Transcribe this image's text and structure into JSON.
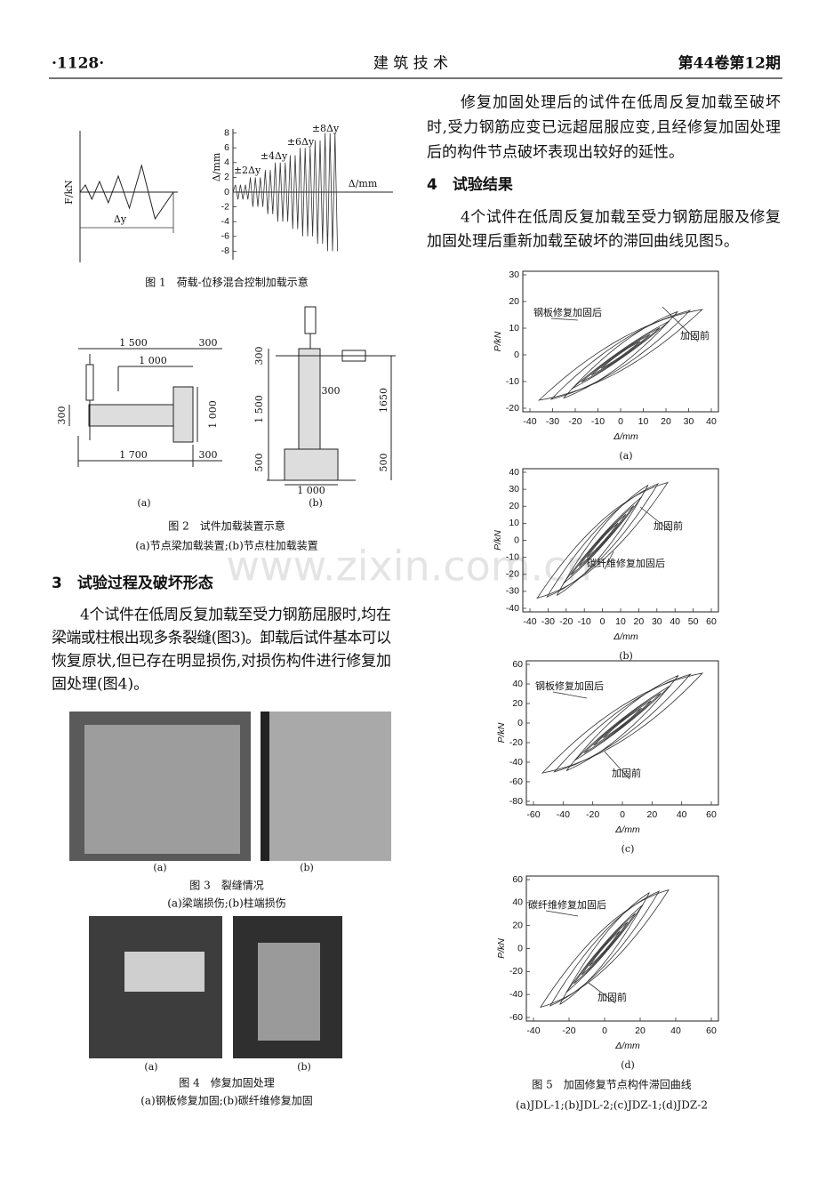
{
  "header": {
    "page": "·1128·",
    "journal": "建 筑 技 术",
    "issue": "第44卷第12期"
  },
  "figure1": {
    "y_label_left": "F/kN",
    "delta_y": "Δy",
    "y_label_right": "Δ/mm",
    "x_label": "Δ/mm",
    "yticks": [
      8,
      6,
      4,
      2,
      0,
      -2,
      -4,
      -6,
      -8
    ],
    "steps": [
      "±2Δy",
      "±4Δy",
      "±6Δy",
      "±8Δy"
    ],
    "caption": "图 1　荷载-位移混合控制加载示意"
  },
  "figure2": {
    "a_dims": [
      "1 500",
      "300",
      "1 000",
      "300",
      "1 000",
      "1 700",
      "300"
    ],
    "b_dims": [
      "300",
      "300",
      "1 500",
      "1650",
      "500",
      "500",
      "1 000"
    ],
    "label_a": "(a)",
    "label_b": "(b)",
    "caption": "图 2　试件加载装置示意",
    "subcaption": "(a)节点梁加载装置;(b)节点柱加载装置"
  },
  "section3": {
    "heading": "3　试验过程及破坏形态",
    "lines": [
      "4个试件在低周反复加载至受力钢筋屈服时,均在",
      "梁端或柱根出现多条裂缝(图3)。卸载后试件基本可以",
      "恢复原状,但已存在明显损伤,对损伤构件进行修复加",
      "固处理(图4)。"
    ]
  },
  "figure3": {
    "label_a": "(a)",
    "label_b": "(b)",
    "caption": "图 3　裂缝情况",
    "subcaption": "(a)梁端损伤;(b)柱端损伤"
  },
  "figure4": {
    "label_a": "(a)",
    "label_b": "(b)",
    "caption": "图 4　修复加固处理",
    "subcaption": "(a)钢板修复加固;(b)碳纤维修复加固"
  },
  "right_paragraph": {
    "lines": [
      "修复加固处理后的试件在低周反复加载至破坏",
      "时,受力钢筋应变已远超屈服应变,且经修复加固处理",
      "后的构件节点破坏表现出较好的延性。"
    ]
  },
  "section4": {
    "heading": "4　试验结果",
    "lines": [
      "4个试件在低周反复加载至受力钢筋屈服及修复",
      "加固处理后重新加载至破坏的滞回曲线见图5。"
    ]
  },
  "figure5": {
    "plots": [
      {
        "y_label": "P/kN",
        "x_label": "Δ/mm",
        "xticks": [
          -40,
          -30,
          -20,
          -10,
          0,
          10,
          20,
          30,
          40
        ],
        "yticks": [
          30,
          20,
          10,
          0,
          -10,
          -20
        ],
        "annotations": [
          "钢板修复加固后",
          "加固前"
        ],
        "label": "(a)"
      },
      {
        "y_label": "P/kN",
        "x_label": "Δ/mm",
        "xticks": [
          -40,
          -30,
          -20,
          -10,
          0,
          10,
          20,
          30,
          40,
          50,
          60
        ],
        "yticks": [
          40,
          30,
          20,
          10,
          0,
          -10,
          -20,
          -30,
          -40
        ],
        "annotations": [
          "加固前",
          "碳纤维修复加固后"
        ],
        "label": "(b)"
      },
      {
        "y_label": "P/kN",
        "x_label": "Δ/mm",
        "xticks": [
          -60,
          -40,
          -20,
          0,
          20,
          40,
          60
        ],
        "yticks": [
          60,
          40,
          20,
          0,
          -20,
          -40,
          -60,
          -80
        ],
        "annotations": [
          "钢板修复加固后",
          "加固前"
        ],
        "label": "(c)"
      },
      {
        "y_label": "P/kN",
        "x_label": "Δ/mm",
        "xticks": [
          -40,
          -20,
          0,
          20,
          40,
          60
        ],
        "yticks": [
          60,
          40,
          20,
          0,
          -20,
          -40,
          -60
        ],
        "annotations": [
          "碳纤维修复加固后",
          "加固前"
        ],
        "label": "(d)"
      }
    ],
    "caption": "图 5　加固修复节点构件滞回曲线",
    "subcaption": "(a)JDL-1;(b)JDL-2;(c)JDZ-1;(d)JDZ-2"
  },
  "watermark": "www.zixin.com.cn"
}
